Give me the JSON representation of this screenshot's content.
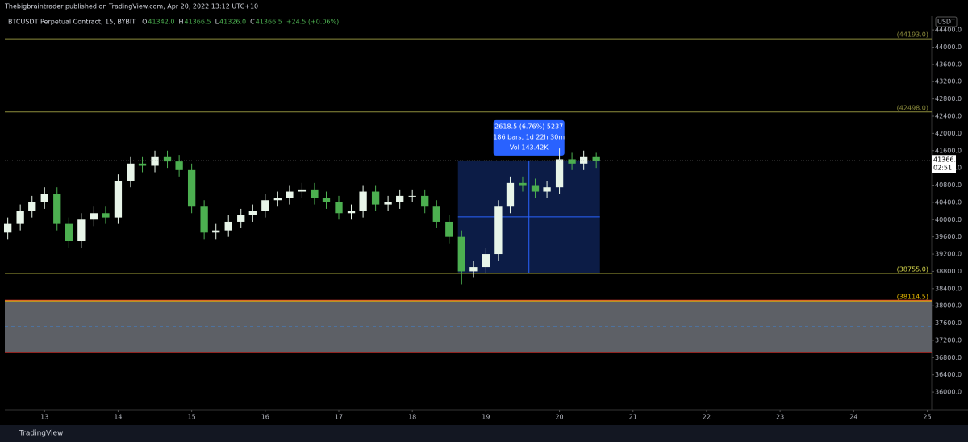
{
  "publisher": "Thebigbraintrader published on TradingView.com, Apr 20, 2022 13:12 UTC+10",
  "footer": "TradingView",
  "chart_data": {
    "type": "candlestick",
    "title": "BTCUSDT Perpetual Contract, 15, BYBIT",
    "ohlc_legend": [
      {
        "label": "O",
        "value": "41342.0"
      },
      {
        "label": "H",
        "value": "41366.5"
      },
      {
        "label": "L",
        "value": "41326.0"
      },
      {
        "label": "C",
        "value": "41366.5"
      }
    ],
    "change": "+24.5 (+0.06%)",
    "currency": "USDT",
    "up_color": "#e8f5e9",
    "down_color": "#4caf50",
    "x": [
      12.5,
      12.67,
      12.83,
      13,
      13.17,
      13.33,
      13.5,
      13.67,
      13.83,
      14,
      14.17,
      14.33,
      14.5,
      14.67,
      14.83,
      15,
      15.17,
      15.33,
      15.5,
      15.67,
      15.83,
      16,
      16.17,
      16.33,
      16.5,
      16.67,
      16.83,
      17,
      17.17,
      17.33,
      17.5,
      17.67,
      17.83,
      18,
      18.17,
      18.33,
      18.5,
      18.67,
      18.83,
      19,
      19.17,
      19.33,
      19.5,
      19.67,
      19.83,
      20,
      20.17,
      20.33,
      20.5
    ],
    "open": [
      39700,
      39900,
      40200,
      40400,
      40600,
      39900,
      39500,
      40000,
      40150,
      40050,
      40900,
      41300,
      41250,
      41450,
      41350,
      41150,
      40300,
      39700,
      39750,
      39950,
      40100,
      40200,
      40450,
      40500,
      40650,
      40700,
      40500,
      40400,
      40150,
      40200,
      40650,
      40350,
      40400,
      40550,
      40550,
      40300,
      39950,
      39600,
      38800,
      38900,
      39200,
      40300,
      40850,
      40800,
      40650,
      40750,
      41400,
      41300,
      41450
    ],
    "high": [
      40050,
      40350,
      40550,
      40750,
      40750,
      40050,
      40150,
      40300,
      40300,
      41050,
      41450,
      41450,
      41600,
      41600,
      41500,
      41300,
      40450,
      39900,
      40100,
      40250,
      40350,
      40600,
      40650,
      40800,
      40850,
      40850,
      40650,
      40550,
      40350,
      40800,
      40800,
      40550,
      40700,
      40700,
      40700,
      40450,
      40100,
      39750,
      39050,
      39350,
      40450,
      41000,
      41000,
      40950,
      40900,
      41650,
      41550,
      41600,
      41550
    ],
    "low": [
      39550,
      39750,
      40050,
      40250,
      39750,
      39350,
      39350,
      39850,
      39900,
      39900,
      40750,
      41100,
      41100,
      41200,
      41000,
      40150,
      39550,
      39550,
      39600,
      39800,
      39950,
      40050,
      40300,
      40350,
      40500,
      40350,
      40250,
      40000,
      40000,
      40050,
      40200,
      40200,
      40250,
      40400,
      40150,
      39800,
      39450,
      38500,
      38650,
      38750,
      39050,
      40150,
      40650,
      40500,
      40500,
      40600,
      41150,
      41150,
      41200
    ],
    "close": [
      39900,
      40200,
      40400,
      40600,
      39900,
      39500,
      40000,
      40150,
      40050,
      40900,
      41300,
      41250,
      41450,
      41350,
      41150,
      40300,
      39700,
      39750,
      39950,
      40100,
      40200,
      40450,
      40500,
      40650,
      40700,
      40500,
      40400,
      40150,
      40200,
      40650,
      40350,
      40400,
      40550,
      40550,
      40300,
      39950,
      39600,
      38800,
      38900,
      39200,
      40300,
      40850,
      40800,
      40650,
      40750,
      41400,
      41300,
      41450,
      41366.5
    ],
    "xlim": [
      12.46,
      25.06
    ],
    "xticks": [
      13,
      14,
      15,
      16,
      17,
      18,
      19,
      20,
      21,
      22,
      23,
      24,
      25
    ],
    "ylim": [
      35590,
      44720
    ],
    "yticks": [
      {
        "value": 36000,
        "label": "36000.0"
      },
      {
        "value": 36400,
        "label": "36400.0"
      },
      {
        "value": 36800,
        "label": "36800.0"
      },
      {
        "value": 37200,
        "label": "37200.0"
      },
      {
        "value": 37600,
        "label": "37600.0"
      },
      {
        "value": 38000,
        "label": "38000.0"
      },
      {
        "value": 38400,
        "label": "38400.0"
      },
      {
        "value": 38800,
        "label": "38800.0"
      },
      {
        "value": 39200,
        "label": "39200.0"
      },
      {
        "value": 39600,
        "label": "39600.0"
      },
      {
        "value": 40000,
        "label": "40000.0"
      },
      {
        "value": 40400,
        "label": "40400.0"
      },
      {
        "value": 40800,
        "label": "40800.0"
      },
      {
        "value": 41200,
        "label": "41200.0"
      },
      {
        "value": 41600,
        "label": "41600.0"
      },
      {
        "value": 42000,
        "label": "42000.0"
      },
      {
        "value": 42400,
        "label": "42400.0"
      },
      {
        "value": 42800,
        "label": "42800.0"
      },
      {
        "value": 43200,
        "label": "43200.0"
      },
      {
        "value": 43600,
        "label": "43600.0"
      },
      {
        "value": 44000,
        "label": "44000.0"
      },
      {
        "value": 44400,
        "label": "44400.0"
      }
    ],
    "levels": [
      {
        "value": 44193,
        "label": "(44193.0)",
        "color": "#8d8d3c"
      },
      {
        "value": 42498,
        "label": "(42498.0)",
        "color": "#8d8d3c"
      },
      {
        "value": 38755,
        "label": "(38755.0)",
        "color": "#d6d64c"
      },
      {
        "value": 38114.5,
        "label": "(38114.5)",
        "color": "#e6b800"
      }
    ],
    "zone": {
      "range": [
        36915,
        38130
      ],
      "color": "#5d6066",
      "edge_color": "#e53935"
    },
    "last_price": {
      "value": 41366.5,
      "label": "41366.5",
      "countdown": "02:51"
    },
    "measure": {
      "x": [
        18.62,
        20.55
      ],
      "price": [
        38755,
        41373.5
      ],
      "lines": [
        "2618.5 (6.76%) 5237",
        "186 bars, 1d 22h 30m",
        "Vol 143.42K"
      ]
    }
  }
}
